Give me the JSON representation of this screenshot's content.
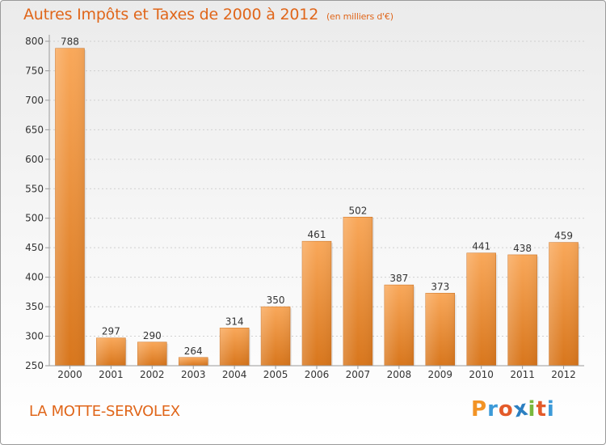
{
  "header": {
    "title": "Autres Impôts et Taxes de 2000 à 2012",
    "subtitle": "(en milliers d'€)"
  },
  "footer": {
    "commune": "LA MOTTE-SERVOLEX",
    "logo": "Proxiti"
  },
  "colors": {
    "accent": "#e0661a",
    "bar_light": "#f9a85a",
    "bar_dark": "#d8761c",
    "logo_letters": [
      "#f29325",
      "#3c9ad8",
      "#e35b2a",
      "#2b7fc1",
      "#7ab83d",
      "#e35b2a",
      "#3c9ad8"
    ]
  },
  "chart_data": {
    "type": "bar",
    "title": "Autres Impôts et Taxes de 2000 à 2012",
    "subtitle": "(en milliers d'€)",
    "categories": [
      "2000",
      "2001",
      "2002",
      "2003",
      "2004",
      "2005",
      "2006",
      "2007",
      "2008",
      "2009",
      "2010",
      "2011",
      "2012"
    ],
    "values": [
      788,
      297,
      290,
      264,
      314,
      350,
      461,
      502,
      387,
      373,
      441,
      438,
      459
    ],
    "ylim": [
      250,
      800
    ],
    "yticks": [
      250,
      300,
      350,
      400,
      450,
      500,
      550,
      600,
      650,
      700,
      750,
      800
    ],
    "grid": true,
    "legend": "none"
  }
}
